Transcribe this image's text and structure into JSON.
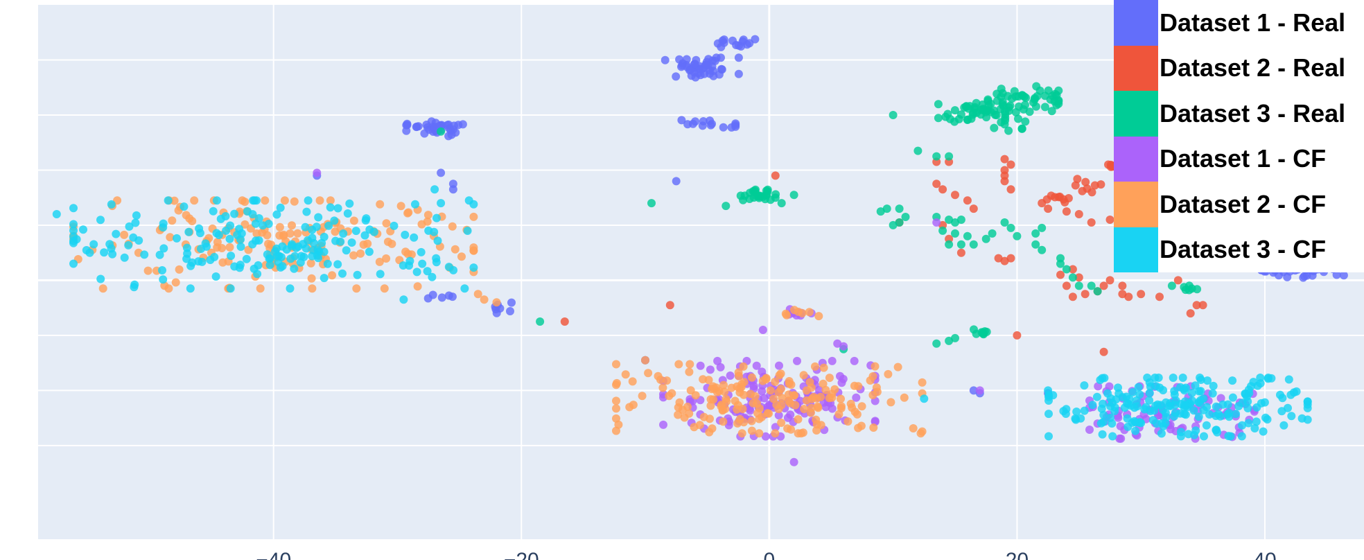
{
  "chart_data": {
    "type": "scatter",
    "xlim": [
      -59,
      48
    ],
    "ylim": [
      -47,
      50
    ],
    "x_ticks": [
      -40,
      -20,
      0,
      20,
      40
    ],
    "y_ticks": [
      -30,
      -20,
      -10,
      0,
      10,
      20,
      30,
      40
    ],
    "grid": true,
    "legend_position": "top-right",
    "series": [
      {
        "name": "Dataset 1 - Real",
        "color": "#636efa",
        "clusters": [
          {
            "cx": -5.5,
            "cy": 38.5,
            "sx": 1.6,
            "sy": 1.0,
            "n": 45
          },
          {
            "cx": -2.5,
            "cy": 43.0,
            "sx": 1.0,
            "sy": 0.4,
            "n": 14
          },
          {
            "cx": -5.0,
            "cy": 28.5,
            "sx": 1.2,
            "sy": 0.4,
            "n": 14
          },
          {
            "cx": -27.0,
            "cy": 27.5,
            "sx": 1.2,
            "sy": 0.7,
            "n": 38
          },
          {
            "cx": 43.5,
            "cy": 2.0,
            "sx": 2.0,
            "sy": 0.8,
            "n": 42
          },
          {
            "cx": 42.0,
            "cy": 4.5,
            "sx": 0.6,
            "sy": 0.4,
            "n": 10
          },
          {
            "cx": -21.5,
            "cy": -5.0,
            "sx": 0.5,
            "sy": 0.5,
            "n": 7
          },
          {
            "cx": -26.5,
            "cy": -3.0,
            "sx": 0.6,
            "sy": 0.3,
            "n": 5
          }
        ],
        "points": [
          [
            -7.5,
            18.0
          ],
          [
            -36.5,
            19.0
          ],
          [
            -25.5,
            16.5
          ],
          [
            -26.5,
            19.5
          ],
          [
            22.5,
            -20.5
          ],
          [
            17,
            -20.5
          ],
          [
            16.5,
            -20
          ],
          [
            -25.5,
            17.5
          ]
        ]
      },
      {
        "name": "Dataset 2 - Real",
        "color": "#ef553b",
        "clusters": [
          {
            "cx": 28.0,
            "cy": 21.0,
            "sx": 0.8,
            "sy": 0.3,
            "n": 12
          },
          {
            "cx": 26.0,
            "cy": 17.5,
            "sx": 0.8,
            "sy": 0.8,
            "n": 8
          },
          {
            "cx": 23.5,
            "cy": 15.0,
            "sx": 0.8,
            "sy": 0.6,
            "n": 8
          }
        ],
        "points": [
          [
            0.5,
            19.0
          ],
          [
            -16.5,
            -7.5
          ],
          [
            13.5,
            17.5
          ],
          [
            14.0,
            16.5
          ],
          [
            15.0,
            15.5
          ],
          [
            16.0,
            14.5
          ],
          [
            16.5,
            13.0
          ],
          [
            13.5,
            21.5
          ],
          [
            14.5,
            21.5
          ],
          [
            19.0,
            19.0
          ],
          [
            19.0,
            18.0
          ],
          [
            19.5,
            16.5
          ],
          [
            19.0,
            20.0
          ],
          [
            19.5,
            21.0
          ],
          [
            19.0,
            22.0
          ],
          [
            19.0,
            3.5
          ],
          [
            18.5,
            4.0
          ],
          [
            19.5,
            4.0
          ],
          [
            10.5,
            10.5
          ],
          [
            14.0,
            10.0
          ],
          [
            14.5,
            7.5
          ],
          [
            15.5,
            5.0
          ],
          [
            22.0,
            14.0
          ],
          [
            22.5,
            13.0
          ],
          [
            24.0,
            12.5
          ],
          [
            25.0,
            12.0
          ],
          [
            26.0,
            10.5
          ],
          [
            27.5,
            11.0
          ],
          [
            30.5,
            21.5
          ],
          [
            31.5,
            22.0
          ],
          [
            23.5,
            1.0
          ],
          [
            24.5,
            2.0
          ],
          [
            25.0,
            0.5
          ],
          [
            24.0,
            -1.0
          ],
          [
            24.5,
            -3.0
          ],
          [
            25.5,
            -2.5
          ],
          [
            26.5,
            -2.0
          ],
          [
            27.0,
            -1.0
          ],
          [
            27.5,
            0.0
          ],
          [
            28.5,
            -1.0
          ],
          [
            28.5,
            -2.5
          ],
          [
            29.0,
            -3.0
          ],
          [
            30.0,
            -2.5
          ],
          [
            31.5,
            -3.0
          ],
          [
            33.0,
            0.0
          ],
          [
            34.0,
            -6.0
          ],
          [
            34.5,
            -4.5
          ],
          [
            35.0,
            -4.5
          ],
          [
            20.0,
            -10.0
          ],
          [
            27.0,
            -13.0
          ],
          [
            -8.0,
            -4.5
          ]
        ]
      },
      {
        "name": "Dataset 3 - Real",
        "color": "#00cc96",
        "clusters": [
          {
            "cx": 20.5,
            "cy": 33.0,
            "sx": 1.5,
            "sy": 1.2,
            "n": 45
          },
          {
            "cx": 16.5,
            "cy": 30.5,
            "sx": 1.5,
            "sy": 0.9,
            "n": 40
          },
          {
            "cx": 19.5,
            "cy": 29.0,
            "sx": 0.8,
            "sy": 1.4,
            "n": 14
          },
          {
            "cx": -1.0,
            "cy": 15.5,
            "sx": 0.8,
            "sy": 0.5,
            "n": 24
          },
          {
            "cx": 17.0,
            "cy": -9.5,
            "sx": 0.4,
            "sy": 0.3,
            "n": 8
          },
          {
            "cx": 34.0,
            "cy": -1.5,
            "sx": 0.5,
            "sy": 0.3,
            "n": 6
          }
        ],
        "points": [
          [
            10.0,
            30.0
          ],
          [
            12.0,
            23.5
          ],
          [
            13.5,
            22.5
          ],
          [
            14.5,
            22.5
          ],
          [
            0.5,
            15.0
          ],
          [
            2.0,
            15.5
          ],
          [
            -3.5,
            13.5
          ],
          [
            1.0,
            14.0
          ],
          [
            9.0,
            12.5
          ],
          [
            9.5,
            13.0
          ],
          [
            10.5,
            13.0
          ],
          [
            10.0,
            10.0
          ],
          [
            10.5,
            10.5
          ],
          [
            11.0,
            11.5
          ],
          [
            13.5,
            11.5
          ],
          [
            14.5,
            11.0
          ],
          [
            15.0,
            10.5
          ],
          [
            15.5,
            11.0
          ],
          [
            14.0,
            9.0
          ],
          [
            15.0,
            8.5
          ],
          [
            16.0,
            8.0
          ],
          [
            14.5,
            6.5
          ],
          [
            15.5,
            6.5
          ],
          [
            16.5,
            6.5
          ],
          [
            17.5,
            7.5
          ],
          [
            18.0,
            8.5
          ],
          [
            19.0,
            10.5
          ],
          [
            19.5,
            9.5
          ],
          [
            20.0,
            8.0
          ],
          [
            21.5,
            8.5
          ],
          [
            22.0,
            9.5
          ],
          [
            21.5,
            6.5
          ],
          [
            22.0,
            5.5
          ],
          [
            23.5,
            4.0
          ],
          [
            23.5,
            3.0
          ],
          [
            24.0,
            2.0
          ],
          [
            24.5,
            0.5
          ],
          [
            25.0,
            -1.0
          ],
          [
            26.0,
            -1.0
          ],
          [
            26.5,
            -2.0
          ],
          [
            32.5,
            -1.0
          ],
          [
            -18.5,
            -7.5
          ],
          [
            13.5,
            -11.5
          ],
          [
            14.5,
            -11.0
          ],
          [
            15.0,
            -10.5
          ],
          [
            6.0,
            -12.5
          ],
          [
            -10.0,
            -14.5
          ],
          [
            -26.5,
            27.0
          ],
          [
            -9.5,
            14.0
          ]
        ]
      },
      {
        "name": "Dataset 1 - CF",
        "color": "#ab63fa",
        "clusters": [
          {
            "cx": 0.0,
            "cy": -21.5,
            "sx": 4.5,
            "sy": 3.6,
            "n": 150
          },
          {
            "cx": 32.5,
            "cy": -24.0,
            "sx": 3.5,
            "sy": 2.5,
            "n": 85
          },
          {
            "cx": 2.5,
            "cy": -6.0,
            "sx": 0.6,
            "sy": 0.5,
            "n": 9
          }
        ],
        "points": [
          [
            5.5,
            -11.5
          ],
          [
            6.0,
            -12.0
          ],
          [
            17.0,
            -20.0
          ],
          [
            -10.0,
            -14.5
          ],
          [
            13.5,
            10.5
          ],
          [
            -0.5,
            -9.0
          ],
          [
            2.0,
            -33.0
          ],
          [
            -36.5,
            19.5
          ],
          [
            26.5,
            -26.0
          ]
        ]
      },
      {
        "name": "Dataset 2 - CF",
        "color": "#ffa15a",
        "clusters": [
          {
            "cx": -40.0,
            "cy": 6.5,
            "sx": 8.5,
            "sy": 4.2,
            "n": 165
          },
          {
            "cx": 0.0,
            "cy": -21.5,
            "sx": 6.5,
            "sy": 3.3,
            "n": 180
          },
          {
            "cx": 2.5,
            "cy": -6.0,
            "sx": 0.7,
            "sy": 0.4,
            "n": 6
          }
        ],
        "points": [
          [
            -23.5,
            -2.5
          ],
          [
            -23.0,
            -3.5
          ],
          [
            -22.0,
            -4.0
          ],
          [
            -10.0,
            -14.5
          ],
          [
            4.0,
            -6.5
          ]
        ]
      },
      {
        "name": "Dataset 3 - CF",
        "color": "#19d3f3",
        "clusters": [
          {
            "cx": -40.0,
            "cy": 6.5,
            "sx": 8.5,
            "sy": 4.2,
            "n": 185
          },
          {
            "cx": 33.0,
            "cy": -23.0,
            "sx": 5.5,
            "sy": 2.8,
            "n": 200
          }
        ],
        "points": [
          [
            -57.5,
            12.0
          ],
          [
            -27.0,
            16.5
          ],
          [
            -26.5,
            14.0
          ],
          [
            -27.5,
            9.0
          ],
          [
            -29.0,
            3.5
          ],
          [
            -28.0,
            3.0
          ],
          [
            -29.5,
            -3.5
          ],
          [
            12.5,
            -21.5
          ],
          [
            22.5,
            -20.0
          ]
        ]
      }
    ]
  }
}
